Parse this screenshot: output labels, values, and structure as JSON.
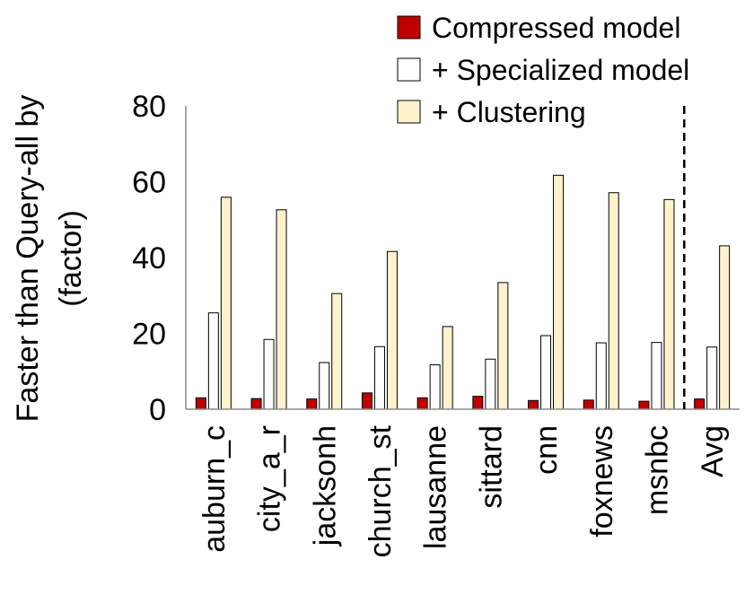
{
  "chart_data": {
    "type": "bar",
    "title": "",
    "xlabel": "",
    "ylabel_lines": [
      "Faster than Query-all by",
      "(factor)"
    ],
    "ylim": [
      0,
      80
    ],
    "yticks": [
      0,
      20,
      40,
      60,
      80
    ],
    "categories": [
      "auburn_c",
      "city_a_r",
      "jacksonh",
      "church_st",
      "lausanne",
      "sittard",
      "cnn",
      "foxnews",
      "msnbc",
      "Avg"
    ],
    "series": [
      {
        "name": "Compressed model",
        "color": "#c00000",
        "values": [
          3,
          2.8,
          2.7,
          4.3,
          3,
          3.4,
          2.3,
          2.4,
          2.1,
          2.7
        ]
      },
      {
        "name": "+ Specialized model",
        "color": "#ffffff",
        "values": [
          25.4,
          18.4,
          12.3,
          16.5,
          11.7,
          13.2,
          19.4,
          17.5,
          17.6,
          16.4
        ]
      },
      {
        "name": "+ Clustering",
        "color": "#fff2cc",
        "values": [
          55.9,
          52.6,
          30.5,
          41.6,
          21.8,
          33.4,
          61.7,
          57.1,
          55.3,
          43.1
        ]
      }
    ],
    "separator_before": "Avg",
    "legend_position": "top-right"
  }
}
